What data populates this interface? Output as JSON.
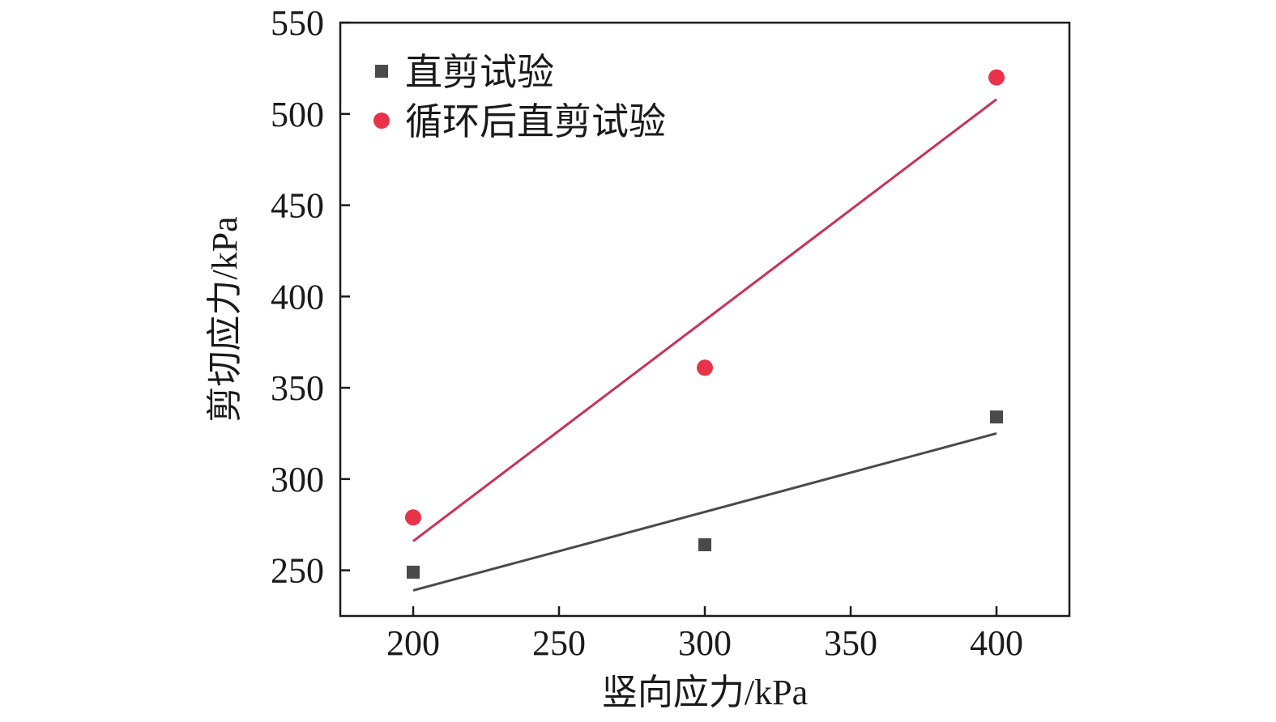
{
  "chart_data": {
    "type": "scatter",
    "title": "",
    "xlabel": "竖向应力/kPa",
    "ylabel": "剪切应力/kPa",
    "xlim": [
      175,
      425
    ],
    "ylim": [
      225,
      550
    ],
    "xticks": [
      200,
      250,
      300,
      350,
      400
    ],
    "yticks": [
      250,
      300,
      350,
      400,
      450,
      500,
      550
    ],
    "grid": false,
    "legend_position": "top-left",
    "series": [
      {
        "name": "直剪试验",
        "marker": "square",
        "color": "#4a4a4a",
        "x": [
          200,
          300,
          400
        ],
        "y": [
          249,
          264,
          334
        ],
        "fit": {
          "x": [
            200,
            400
          ],
          "y": [
            239,
            325
          ]
        }
      },
      {
        "name": "循环后直剪试验",
        "marker": "circle",
        "color": "#e8334a",
        "line_color": "#c8325a",
        "x": [
          200,
          300,
          400
        ],
        "y": [
          279,
          361,
          520
        ],
        "fit": {
          "x": [
            200,
            400
          ],
          "y": [
            266,
            508
          ]
        }
      }
    ]
  }
}
